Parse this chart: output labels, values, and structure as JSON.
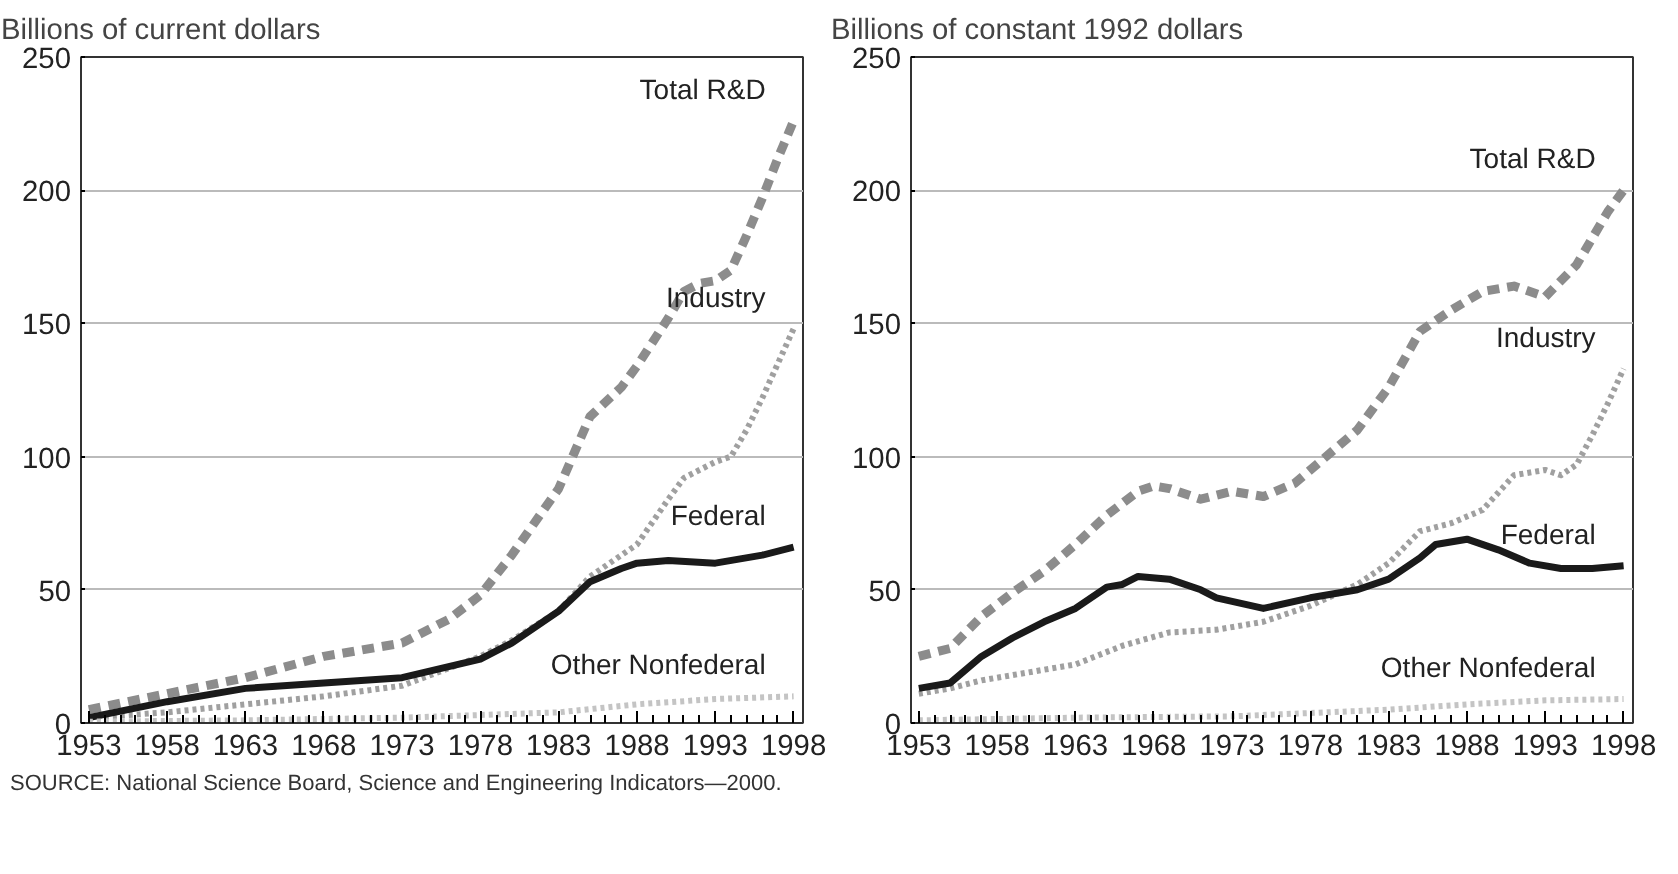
{
  "chart_data": [
    {
      "type": "line",
      "ylabel": "Billions of current dollars",
      "xlim": [
        1952.5,
        1998.6
      ],
      "xticks": [
        1953,
        1958,
        1963,
        1968,
        1973,
        1978,
        1983,
        1988,
        1993,
        1998
      ],
      "ylim": [
        0,
        250
      ],
      "yticks": [
        0,
        50,
        100,
        150,
        200,
        250
      ],
      "grid": "y",
      "legend": false,
      "annotations": [
        "SOURCE: National Science Board, Science and Engineering Indicators—2000."
      ],
      "series": [
        {
          "name": "Total R&D",
          "color": "#8c8c8c",
          "line_style": "dashed",
          "x": [
            1953,
            1958,
            1963,
            1968,
            1973,
            1976,
            1978,
            1980,
            1983,
            1985,
            1987,
            1988,
            1990,
            1991,
            1992,
            1993,
            1994,
            1995,
            1996,
            1997,
            1998
          ],
          "values": [
            5,
            11,
            17,
            25,
            30,
            39,
            48,
            63,
            88,
            115,
            126,
            134,
            152,
            162,
            165,
            166,
            170,
            183,
            197,
            212,
            226
          ]
        },
        {
          "name": "Industry",
          "color": "#a0a0a0",
          "line_style": "dotted",
          "x": [
            1953,
            1958,
            1963,
            1968,
            1973,
            1978,
            1980,
            1983,
            1985,
            1987,
            1988,
            1990,
            1991,
            1993,
            1994,
            1995,
            1996,
            1997,
            1998
          ],
          "values": [
            2,
            4,
            7,
            10,
            14,
            25,
            31,
            42,
            55,
            63,
            67,
            84,
            92,
            98,
            100,
            110,
            122,
            135,
            148
          ]
        },
        {
          "name": "Federal",
          "color": "#1a1a1a",
          "line_style": "solid",
          "x": [
            1953,
            1958,
            1963,
            1968,
            1973,
            1978,
            1980,
            1983,
            1985,
            1987,
            1988,
            1990,
            1993,
            1996,
            1998
          ],
          "values": [
            2,
            8,
            13,
            15,
            17,
            24,
            30,
            42,
            53,
            58,
            60,
            61,
            60,
            63,
            66
          ]
        },
        {
          "name": "Other Nonfederal",
          "color": "#c4c4c4",
          "line_style": "dotted",
          "x": [
            1953,
            1963,
            1973,
            1978,
            1983,
            1988,
            1993,
            1998
          ],
          "values": [
            0.5,
            1,
            2,
            3,
            4,
            7,
            9,
            10
          ]
        }
      ]
    },
    {
      "type": "line",
      "ylabel": "Billions of constant 1992 dollars",
      "xlim": [
        1952.5,
        1998.6
      ],
      "xticks": [
        1953,
        1958,
        1963,
        1968,
        1973,
        1978,
        1983,
        1988,
        1993,
        1998
      ],
      "ylim": [
        0,
        250
      ],
      "yticks": [
        0,
        50,
        100,
        150,
        200,
        250
      ],
      "grid": "y",
      "legend": false,
      "series": [
        {
          "name": "Total R&D",
          "color": "#8c8c8c",
          "line_style": "dashed",
          "x": [
            1953,
            1955,
            1957,
            1959,
            1961,
            1963,
            1965,
            1967,
            1968,
            1969,
            1971,
            1973,
            1975,
            1977,
            1979,
            1981,
            1983,
            1985,
            1987,
            1989,
            1991,
            1993,
            1995,
            1997,
            1998
          ],
          "values": [
            25,
            28,
            40,
            49,
            57,
            67,
            78,
            87,
            89,
            88,
            84,
            87,
            85,
            90,
            100,
            110,
            126,
            147,
            155,
            162,
            164,
            160,
            172,
            192,
            200
          ]
        },
        {
          "name": "Industry",
          "color": "#a0a0a0",
          "line_style": "dotted",
          "x": [
            1953,
            1955,
            1957,
            1959,
            1963,
            1966,
            1969,
            1972,
            1975,
            1978,
            1981,
            1983,
            1985,
            1987,
            1989,
            1991,
            1993,
            1994,
            1995,
            1996,
            1997,
            1998
          ],
          "values": [
            11,
            13,
            16,
            18,
            22,
            29,
            34,
            35,
            38,
            44,
            52,
            60,
            72,
            75,
            80,
            93,
            95,
            93,
            97,
            108,
            120,
            133
          ]
        },
        {
          "name": "Federal",
          "color": "#1a1a1a",
          "line_style": "solid",
          "x": [
            1953,
            1955,
            1957,
            1959,
            1961,
            1963,
            1965,
            1966,
            1967,
            1969,
            1971,
            1972,
            1975,
            1978,
            1981,
            1983,
            1985,
            1986,
            1988,
            1990,
            1992,
            1994,
            1996,
            1998
          ],
          "values": [
            13,
            15,
            25,
            32,
            38,
            43,
            51,
            52,
            55,
            54,
            50,
            47,
            43,
            47,
            50,
            54,
            62,
            67,
            69,
            65,
            60,
            58,
            58,
            59
          ]
        },
        {
          "name": "Other Nonfederal",
          "color": "#c4c4c4",
          "line_style": "dotted",
          "x": [
            1953,
            1963,
            1973,
            1983,
            1988,
            1993,
            1998
          ],
          "values": [
            1,
            2,
            2.5,
            5,
            7,
            8.5,
            9
          ]
        }
      ]
    }
  ]
}
